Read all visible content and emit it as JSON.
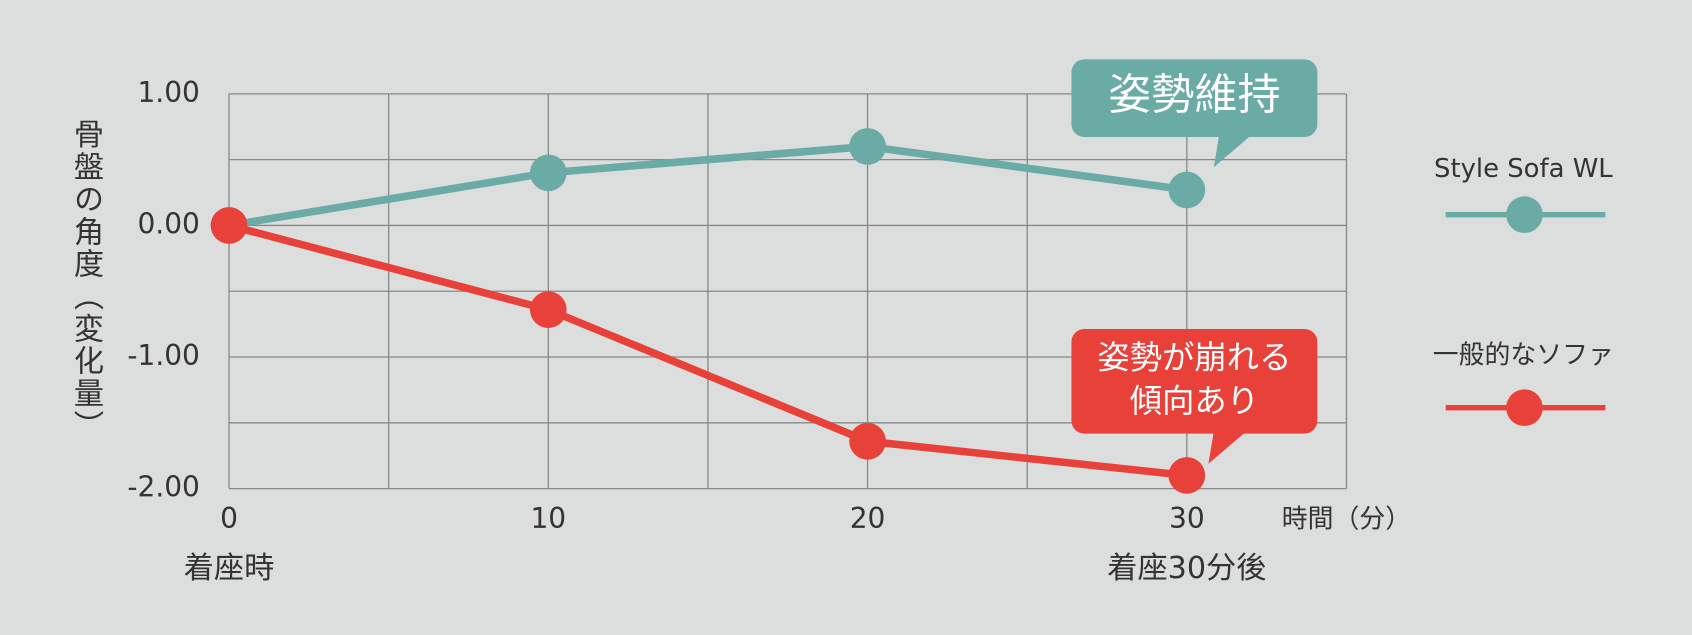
{
  "chart_data": {
    "type": "line",
    "y_label": "骨盤の角度（変化量）",
    "x_label": "時間（分）",
    "x": [
      0,
      10,
      20,
      30
    ],
    "x_sublabels": [
      "着座時",
      null,
      null,
      "着座30分後"
    ],
    "series": [
      {
        "name": "Style Sofa WL",
        "color": "#6aaba6",
        "values": [
          0,
          0.4,
          0.6,
          0.27
        ]
      },
      {
        "name": "一般的なソファ",
        "color": "#e8413a",
        "values": [
          0,
          -0.64,
          -1.64,
          -1.9
        ]
      }
    ],
    "annotations": [
      {
        "lines": [
          "姿勢維持"
        ],
        "color": "#6aaba6"
      },
      {
        "lines": [
          "姿勢が崩れる",
          "傾向あり"
        ],
        "color": "#e8413a"
      }
    ],
    "xlim": [
      0,
      35
    ],
    "ylim": [
      -2,
      1
    ],
    "xticks": [
      0,
      10,
      20,
      30
    ],
    "yticks": [
      {
        "value": 1,
        "label": "1.00"
      },
      {
        "value": 0,
        "label": "0.00"
      },
      {
        "value": -1,
        "label": "-1.00"
      },
      {
        "value": -2,
        "label": "-2.00"
      }
    ],
    "xgrid": [
      0,
      5,
      10,
      15,
      20,
      25,
      30,
      35
    ],
    "ygrid": [
      1,
      0.5,
      0,
      -0.5,
      -1,
      -1.5,
      -2
    ],
    "grid": true
  }
}
